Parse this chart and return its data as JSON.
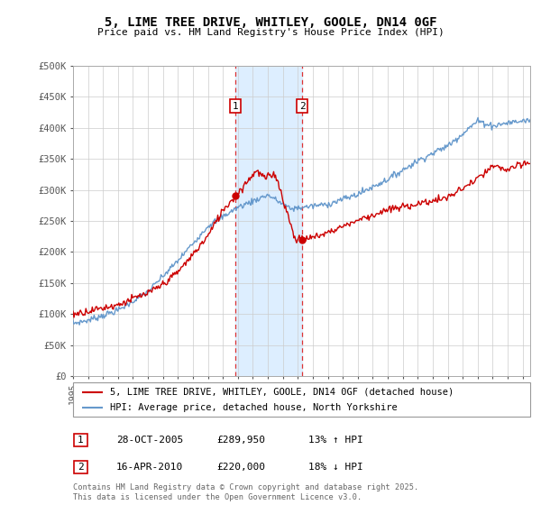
{
  "title": "5, LIME TREE DRIVE, WHITLEY, GOOLE, DN14 0GF",
  "subtitle": "Price paid vs. HM Land Registry's House Price Index (HPI)",
  "background_color": "#ffffff",
  "plot_bg_color": "#ffffff",
  "grid_color": "#cccccc",
  "sale1": {
    "date": 2005.83,
    "price": 289950,
    "label": "1"
  },
  "sale2": {
    "date": 2010.29,
    "price": 220000,
    "label": "2"
  },
  "legend_property": "5, LIME TREE DRIVE, WHITLEY, GOOLE, DN14 0GF (detached house)",
  "legend_hpi": "HPI: Average price, detached house, North Yorkshire",
  "footer": "Contains HM Land Registry data © Crown copyright and database right 2025.\nThis data is licensed under the Open Government Licence v3.0.",
  "xmin": 1995.0,
  "xmax": 2025.5,
  "ymin": 0,
  "ymax": 500000,
  "yticks": [
    0,
    50000,
    100000,
    150000,
    200000,
    250000,
    300000,
    350000,
    400000,
    450000,
    500000
  ],
  "ytick_labels": [
    "£0",
    "£50K",
    "£100K",
    "£150K",
    "£200K",
    "£250K",
    "£300K",
    "£350K",
    "£400K",
    "£450K",
    "£500K"
  ],
  "property_color": "#cc0000",
  "hpi_color": "#6699cc",
  "highlight_color": "#ddeeff",
  "dashed_line_color": "#dd3333",
  "sale1_date_str": "28-OCT-2005",
  "sale1_price_str": "£289,950",
  "sale1_hpi_str": "13% ↑ HPI",
  "sale2_date_str": "16-APR-2010",
  "sale2_price_str": "£220,000",
  "sale2_hpi_str": "18% ↓ HPI"
}
